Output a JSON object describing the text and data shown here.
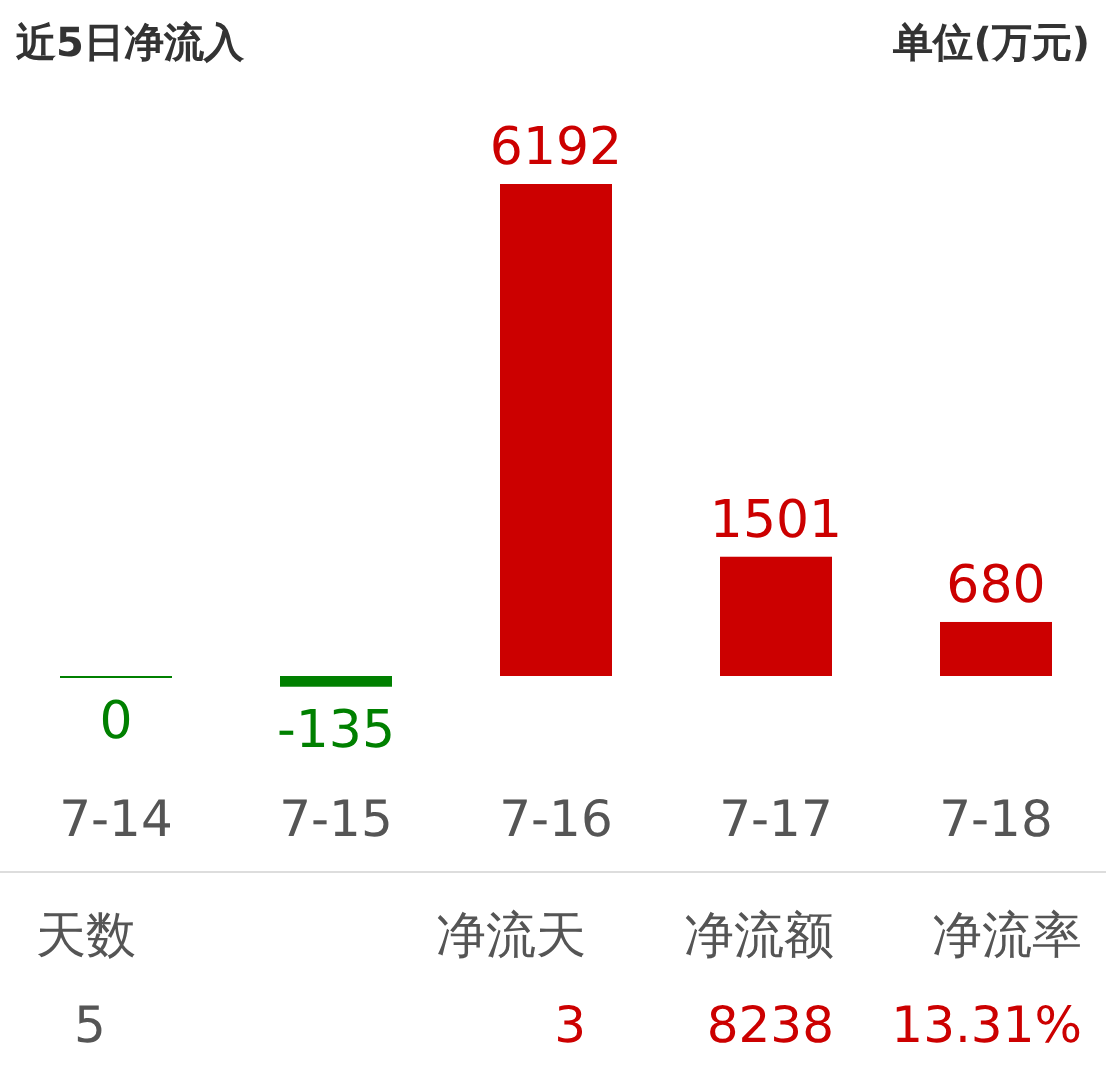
{
  "chart_data": {
    "type": "bar",
    "title": "近5日净流入",
    "subtitle": "单位(万元)",
    "categories": [
      "7-14",
      "7-15",
      "7-16",
      "7-17",
      "7-18"
    ],
    "values": [
      0,
      -135,
      6192,
      1501,
      680
    ],
    "colors": [
      "#008000",
      "#008000",
      "#cc0000",
      "#cc0000",
      "#cc0000"
    ],
    "data_labels": true,
    "annotations": [
      "天数",
      "净流天",
      "净流额",
      "净流率",
      "5",
      "3",
      "8238",
      "13.31%"
    ]
  }
}
